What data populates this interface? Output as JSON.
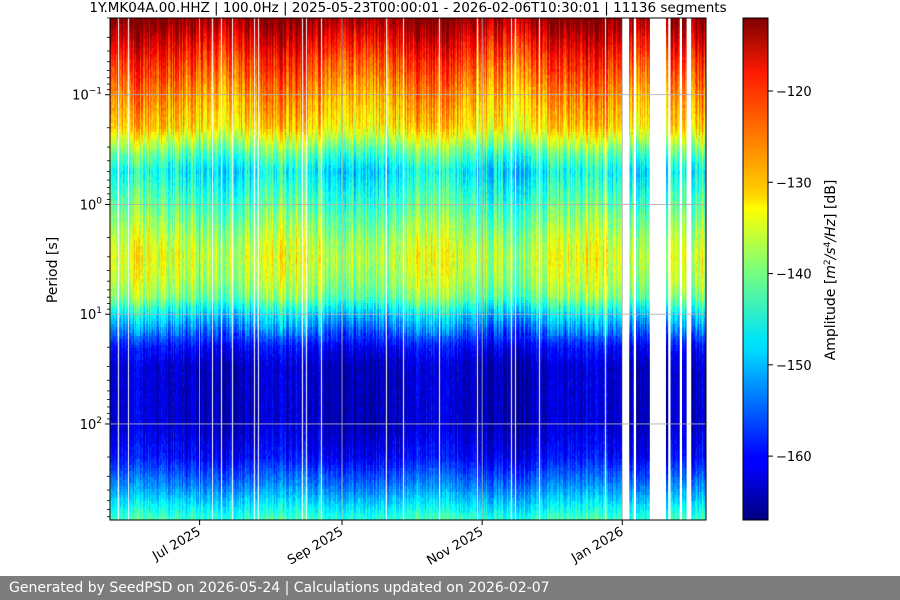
{
  "chart_data": {
    "type": "heatmap",
    "title": "1Y.MK04A.00.HHZ | 100.0Hz | 2025-05-23T00:00:01 - 2026-02-06T10:30:01 | 11136 segments",
    "ylabel": "Period [s]",
    "colorbar_label": "Amplitude [m²/s⁴/Hz] [dB]",
    "colorbar_label_parts": {
      "pre": "Amplitude [",
      "m": "m",
      "sup2": "2",
      "s": "/s",
      "sup4": "4",
      "hz": "/Hz",
      "post": "] [dB]"
    },
    "x_range": [
      "2025-05-23T00:00:01",
      "2026-02-06T10:30:01"
    ],
    "x_ticks": [
      {
        "date": "2025-07-01",
        "label": "Jul 2025"
      },
      {
        "date": "2025-09-01",
        "label": "Sep 2025"
      },
      {
        "date": "2025-11-01",
        "label": "Nov 2025"
      },
      {
        "date": "2026-01-01",
        "label": "Jan 2026"
      }
    ],
    "y_scale": "log",
    "y_inverted": true,
    "y_range": [
      0.02,
      750
    ],
    "y_ticks": [
      {
        "value": 0.1,
        "base": "10",
        "exp": "−1"
      },
      {
        "value": 1,
        "base": "10",
        "exp": "0"
      },
      {
        "value": 10,
        "base": "10",
        "exp": "1"
      },
      {
        "value": 100,
        "base": "10",
        "exp": "2"
      }
    ],
    "colormap": "jet",
    "color_range_db": [
      -167,
      -112
    ],
    "colorbar_ticks": [
      {
        "value": -120,
        "label": "−120"
      },
      {
        "value": -130,
        "label": "−130"
      },
      {
        "value": -140,
        "label": "−140"
      },
      {
        "value": -150,
        "label": "−150"
      },
      {
        "value": -160,
        "label": "−160"
      }
    ],
    "grid": true,
    "profile_period_s": [
      0.02,
      0.03,
      0.05,
      0.1,
      0.2,
      0.35,
      0.5,
      1,
      2,
      3,
      5,
      7,
      10,
      15,
      20,
      30,
      50,
      100,
      200,
      400,
      750
    ],
    "profile_db": [
      -112,
      -117,
      -122,
      -127,
      -131,
      -142,
      -147,
      -142,
      -137,
      -135,
      -137,
      -140,
      -148,
      -155,
      -160,
      -163,
      -163,
      -163,
      -160,
      -152,
      -143
    ],
    "data_gaps": [
      [
        "2026-01-01",
        "2026-01-04"
      ],
      [
        "2026-01-06",
        "2026-01-07"
      ],
      [
        "2026-01-13",
        "2026-01-20"
      ],
      [
        "2026-01-21",
        "2026-01-22"
      ],
      [
        "2026-01-26",
        "2026-01-27"
      ],
      [
        "2026-01-29",
        "2026-01-31"
      ]
    ]
  },
  "footer": {
    "text": "Generated by SeedPSD on 2026-05-24 | Calculations updated on 2026-02-07"
  }
}
